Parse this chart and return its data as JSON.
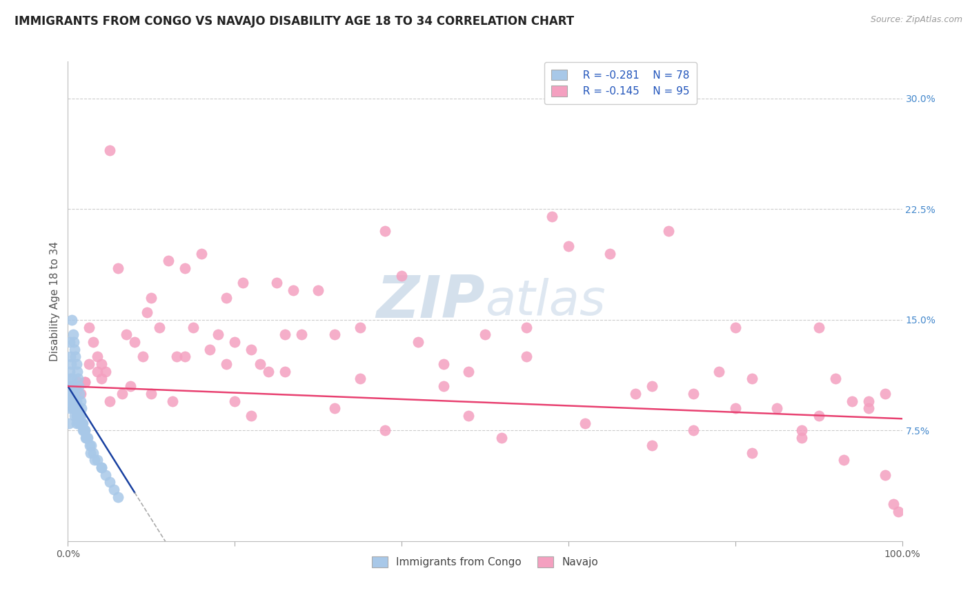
{
  "title": "IMMIGRANTS FROM CONGO VS NAVAJO DISABILITY AGE 18 TO 34 CORRELATION CHART",
  "source": "Source: ZipAtlas.com",
  "ylabel": "Disability Age 18 to 34",
  "legend_label1": "Immigrants from Congo",
  "legend_label2": "Navajo",
  "r1": -0.281,
  "n1": 78,
  "r2": -0.145,
  "n2": 95,
  "xlim": [
    0.0,
    100.0
  ],
  "ylim": [
    0.0,
    32.5
  ],
  "y_ticks_right": [
    7.5,
    15.0,
    22.5,
    30.0
  ],
  "color_blue": "#A8C8E8",
  "color_pink": "#F4A0C0",
  "trend_blue": "#1840A0",
  "trend_pink": "#E84070",
  "watermark_zip_color": "#B8CCE0",
  "watermark_atlas_color": "#C8D8E8",
  "background_color": "#FFFFFF",
  "title_fontsize": 12,
  "axis_label_fontsize": 11,
  "tick_fontsize": 10,
  "blue_x": [
    0.1,
    0.1,
    0.2,
    0.2,
    0.2,
    0.3,
    0.3,
    0.3,
    0.3,
    0.4,
    0.4,
    0.4,
    0.5,
    0.5,
    0.5,
    0.5,
    0.6,
    0.6,
    0.6,
    0.7,
    0.7,
    0.7,
    0.8,
    0.8,
    0.8,
    0.9,
    0.9,
    1.0,
    1.0,
    1.0,
    1.0,
    1.1,
    1.1,
    1.2,
    1.2,
    1.3,
    1.3,
    1.4,
    1.5,
    1.5,
    1.6,
    1.7,
    1.8,
    1.9,
    2.0,
    2.1,
    2.2,
    2.4,
    2.6,
    2.8,
    3.0,
    3.5,
    4.0,
    4.5,
    5.0,
    5.5,
    6.0,
    0.2,
    0.3,
    0.4,
    0.5,
    0.6,
    0.7,
    0.8,
    0.9,
    1.0,
    1.1,
    1.2,
    1.3,
    1.4,
    1.5,
    1.6,
    1.8,
    2.0,
    2.3,
    2.7,
    3.2,
    4.0
  ],
  "blue_y": [
    9.5,
    8.0,
    11.5,
    10.5,
    9.0,
    11.0,
    10.5,
    10.0,
    9.5,
    10.5,
    10.0,
    9.5,
    11.0,
    10.5,
    10.0,
    9.5,
    10.0,
    9.5,
    9.0,
    10.0,
    9.5,
    9.0,
    9.5,
    9.0,
    8.5,
    9.5,
    9.0,
    9.5,
    9.0,
    8.5,
    8.0,
    9.0,
    8.5,
    9.0,
    8.5,
    8.5,
    8.0,
    8.5,
    8.5,
    8.0,
    8.0,
    8.0,
    7.5,
    7.5,
    7.5,
    7.0,
    7.0,
    7.0,
    6.5,
    6.5,
    6.0,
    5.5,
    5.0,
    4.5,
    4.0,
    3.5,
    3.0,
    13.5,
    12.5,
    12.0,
    15.0,
    14.0,
    13.5,
    13.0,
    12.5,
    12.0,
    11.5,
    11.0,
    10.5,
    10.0,
    9.5,
    9.0,
    8.0,
    7.5,
    7.0,
    6.0,
    5.5,
    5.0
  ],
  "pink_x": [
    0.5,
    1.0,
    1.5,
    2.0,
    2.5,
    3.0,
    3.5,
    4.0,
    4.5,
    5.0,
    6.0,
    7.0,
    8.0,
    9.0,
    10.0,
    11.0,
    12.0,
    13.0,
    14.0,
    15.0,
    16.0,
    17.0,
    18.0,
    19.0,
    20.0,
    21.0,
    22.0,
    23.0,
    24.0,
    25.0,
    26.0,
    27.0,
    28.0,
    30.0,
    32.0,
    35.0,
    38.0,
    40.0,
    42.0,
    45.0,
    48.0,
    50.0,
    55.0,
    58.0,
    60.0,
    65.0,
    70.0,
    72.0,
    75.0,
    78.0,
    80.0,
    82.0,
    85.0,
    88.0,
    90.0,
    92.0,
    94.0,
    96.0,
    98.0,
    99.0,
    1.2,
    2.5,
    4.0,
    6.5,
    9.5,
    14.0,
    19.0,
    26.0,
    35.0,
    45.0,
    55.0,
    68.0,
    80.0,
    90.0,
    96.0,
    2.0,
    5.0,
    10.0,
    20.0,
    32.0,
    48.0,
    62.0,
    75.0,
    88.0,
    98.0,
    3.5,
    7.5,
    12.5,
    22.0,
    38.0,
    52.0,
    70.0,
    82.0,
    93.0,
    99.5
  ],
  "pink_y": [
    10.5,
    10.2,
    10.0,
    10.8,
    14.5,
    13.5,
    12.5,
    12.0,
    11.5,
    26.5,
    18.5,
    14.0,
    13.5,
    12.5,
    16.5,
    14.5,
    19.0,
    12.5,
    18.5,
    14.5,
    19.5,
    13.0,
    14.0,
    16.5,
    13.5,
    17.5,
    13.0,
    12.0,
    11.5,
    17.5,
    14.0,
    17.0,
    14.0,
    17.0,
    14.0,
    14.5,
    21.0,
    18.0,
    13.5,
    12.0,
    11.5,
    14.0,
    12.5,
    22.0,
    20.0,
    19.5,
    10.5,
    21.0,
    10.0,
    11.5,
    14.5,
    11.0,
    9.0,
    7.5,
    14.5,
    11.0,
    9.5,
    9.0,
    10.0,
    2.5,
    10.8,
    12.0,
    11.0,
    10.0,
    15.5,
    12.5,
    12.0,
    11.5,
    11.0,
    10.5,
    14.5,
    10.0,
    9.0,
    8.5,
    9.5,
    10.8,
    9.5,
    10.0,
    9.5,
    9.0,
    8.5,
    8.0,
    7.5,
    7.0,
    4.5,
    11.5,
    10.5,
    9.5,
    8.5,
    7.5,
    7.0,
    6.5,
    6.0,
    5.5,
    2.0
  ]
}
